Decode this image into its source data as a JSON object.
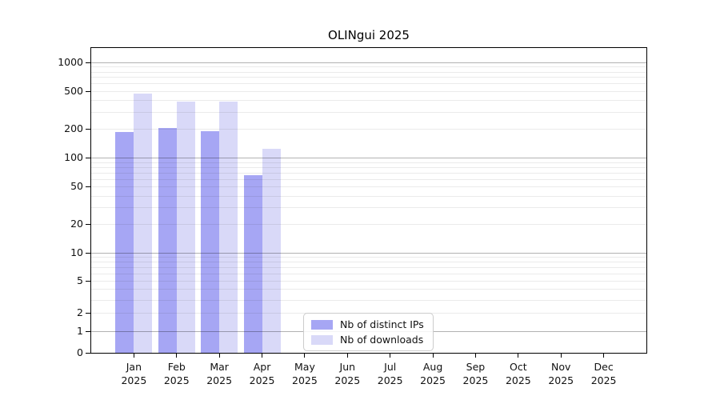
{
  "title": "OLINgui 2025",
  "colors": {
    "ips_bar": "#a6a6f4",
    "downloads_bar": "#d9d9f8",
    "grid_major_on_white": "#b3b3b3",
    "grid_minor_on_white": "#ebebeb",
    "spine": "#000000",
    "legend_border": "#cccccc"
  },
  "legend": {
    "items": [
      {
        "label": "Nb of distinct IPs",
        "color_key": "ips_bar"
      },
      {
        "label": "Nb of downloads",
        "color_key": "downloads_bar"
      }
    ]
  },
  "y_axis": {
    "tick_labels": [
      "1000",
      "500",
      "200",
      "100",
      "50",
      "20",
      "10",
      "5",
      "2",
      "1",
      "0"
    ],
    "tick_values": [
      1000,
      500,
      200,
      100,
      50,
      20,
      10,
      5,
      2,
      1,
      0
    ]
  },
  "x_axis": {
    "months": [
      "Jan",
      "Feb",
      "Mar",
      "Apr",
      "May",
      "Jun",
      "Jul",
      "Aug",
      "Sep",
      "Oct",
      "Nov",
      "Dec"
    ],
    "year": "2025"
  },
  "chart_data": {
    "type": "bar",
    "title": "OLINgui 2025",
    "xlabel": "",
    "ylabel": "",
    "categories": [
      "Jan 2025",
      "Feb 2025",
      "Mar 2025",
      "Apr 2025",
      "May 2025",
      "Jun 2025",
      "Jul 2025",
      "Aug 2025",
      "Sep 2025",
      "Oct 2025",
      "Nov 2025",
      "Dec 2025"
    ],
    "series": [
      {
        "name": "Nb of distinct IPs",
        "color": "#a6a6f4",
        "values": [
          185,
          205,
          190,
          66,
          0,
          0,
          0,
          0,
          0,
          0,
          0,
          0
        ]
      },
      {
        "name": "Nb of downloads",
        "color": "#d9d9f8",
        "values": [
          470,
          390,
          390,
          123,
          0,
          0,
          0,
          0,
          0,
          0,
          0,
          0
        ]
      }
    ],
    "yscale": "asinh",
    "yscale_linear_width": 1.8,
    "ylim": [
      0,
      1000
    ],
    "yticks": [
      0,
      1,
      2,
      5,
      10,
      20,
      50,
      100,
      200,
      500,
      1000
    ],
    "grid": "horizontal major at powers of 10 (darker) + log minors 2-9 per decade (light), drawn over bars",
    "legend_position": "lower center-left inside plot",
    "bar_layout": "grouped pair per month, bars adjacent, centered on month tick"
  }
}
